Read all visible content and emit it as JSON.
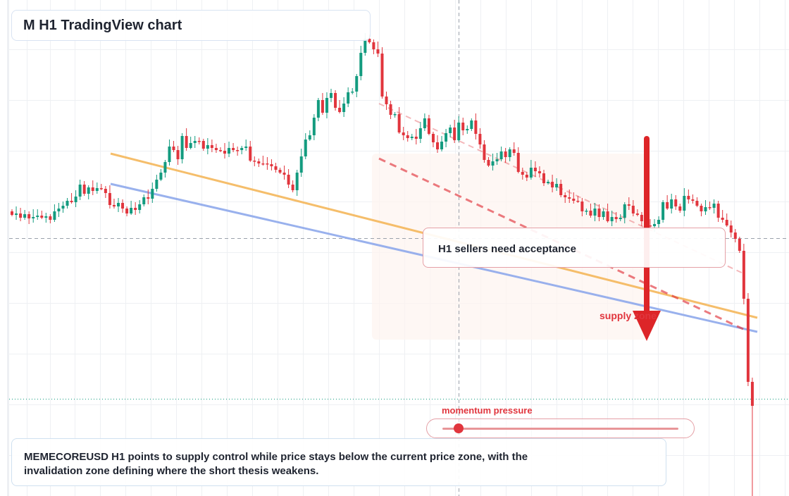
{
  "title": "M H1 TradingView chart",
  "callout": "H1 sellers need acceptance",
  "supply_label": "supply zone",
  "momentum": {
    "label": "momentum pressure",
    "level": 0.07
  },
  "summary": "MEMECOREUSD H1 points to supply control while price stays below the current price zone, with the invalidation zone defining where the short thesis weakens.",
  "colors": {
    "up": "#139b7f",
    "down": "#e1353d",
    "trend_orange": "#f5b75c",
    "trend_blue": "#8fa9ec",
    "resistance": "#e1353d",
    "arrow": "#dd2528",
    "zone_fill": "#fdf4f0"
  },
  "chart_data": {
    "type": "candlestick",
    "title": "",
    "xlabel": "",
    "ylabel": "",
    "grid": true,
    "ylim": [
      0,
      704
    ],
    "closes": [
      305,
      303,
      309,
      304,
      310,
      308,
      306,
      309,
      307,
      312,
      300,
      296,
      292,
      285,
      287,
      279,
      262,
      275,
      266,
      271,
      267,
      268,
      274,
      291,
      293,
      288,
      296,
      303,
      295,
      298,
      290,
      280,
      282,
      268,
      255,
      245,
      230,
      208,
      213,
      226,
      193,
      210,
      203,
      200,
      200,
      211,
      206,
      210,
      213,
      214,
      218,
      210,
      213,
      213,
      210,
      208,
      228,
      229,
      232,
      232,
      233,
      236,
      241,
      245,
      248,
      262,
      270,
      245,
      222,
      198,
      192,
      167,
      142,
      160,
      139,
      132,
      153,
      159,
      147,
      131,
      130,
      108,
      75,
      55,
      60,
      70,
      76,
      137,
      148,
      163,
      162,
      188,
      192,
      196,
      194,
      197,
      182,
      168,
      190,
      202,
      212,
      201,
      189,
      181,
      199,
      174,
      185,
      183,
      171,
      190,
      205,
      227,
      235,
      229,
      226,
      215,
      223,
      212,
      217,
      244,
      248,
      252,
      238,
      243,
      246,
      260,
      258,
      266,
      261,
      277,
      280,
      282,
      285,
      286,
      300,
      299,
      306,
      296,
      308,
      300,
      314,
      308,
      311,
      309,
      290,
      292,
      303,
      305,
      314,
      320,
      321,
      318,
      312,
      287,
      296,
      283,
      293,
      299,
      278,
      283,
      285,
      292,
      300,
      294,
      295,
      289,
      309,
      312,
      320,
      330,
      339,
      356,
      424,
      542,
      576
    ]
  }
}
